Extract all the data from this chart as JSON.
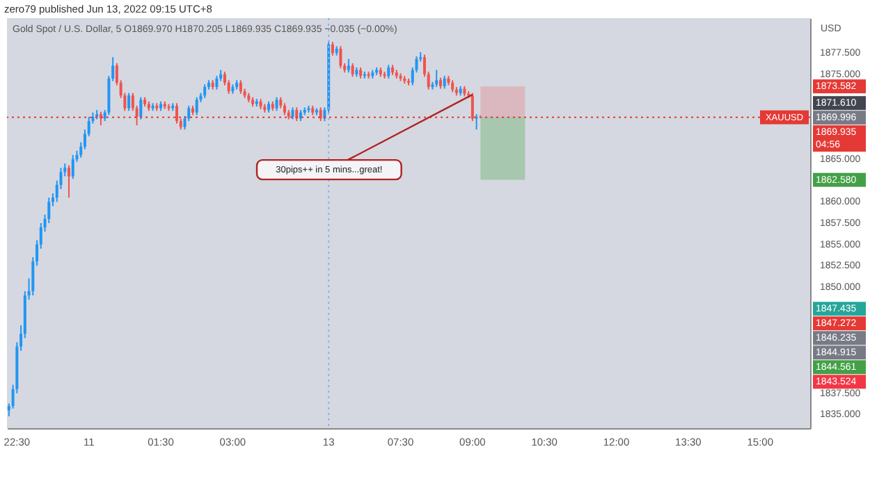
{
  "chart_data": {
    "type": "candlestick",
    "title": "zero79 published Jun 13, 2022 09:15 UTC+8",
    "subtitle": "Gold Spot / U.S. Dollar, 5  O1869.970 H1870.205 L1869.935 C1869.935 −0.035 (−0.00%)",
    "ylabel": "USD",
    "categories": [
      null,
      null,
      "22:30",
      null,
      null,
      null,
      null,
      null,
      null,
      null,
      null,
      null,
      null,
      null,
      null,
      null,
      null,
      null,
      null,
      null,
      "11",
      null,
      null,
      null,
      null,
      null,
      null,
      null,
      null,
      null,
      null,
      null,
      null,
      null,
      null,
      null,
      null,
      null,
      "01:30",
      null,
      null,
      null,
      null,
      null,
      null,
      null,
      null,
      null,
      null,
      null,
      null,
      null,
      null,
      null,
      null,
      null,
      "03:00",
      null,
      null,
      null,
      null,
      null,
      null,
      null,
      null,
      null,
      null,
      null,
      null,
      null,
      null,
      null,
      null,
      null,
      null,
      null,
      null,
      null,
      null,
      null,
      "13",
      null,
      null,
      null,
      null,
      null,
      null,
      null,
      null,
      null,
      null,
      null,
      null,
      null,
      null,
      null,
      null,
      null,
      "07:30",
      null,
      null,
      null,
      null,
      null,
      null,
      null,
      null,
      null,
      null,
      null,
      null,
      null,
      null,
      null,
      null,
      null,
      "09:00",
      null,
      null,
      null,
      null,
      null,
      null,
      null,
      null,
      null,
      null,
      null,
      null,
      null,
      null,
      null,
      null,
      null,
      "10:30",
      null,
      null,
      null,
      null,
      null,
      null,
      null,
      null,
      null,
      null,
      null,
      null,
      null,
      null,
      null,
      null,
      null,
      "12:00",
      null,
      null,
      null,
      null,
      null,
      null,
      null,
      null,
      null,
      null,
      null,
      null,
      null,
      null,
      null,
      null,
      null,
      "13:30",
      null,
      null,
      null,
      null,
      null,
      null,
      null,
      null,
      null,
      null,
      null,
      null,
      null,
      null,
      null,
      null,
      null,
      "15:00",
      null,
      null,
      null,
      null,
      null,
      null,
      null,
      null,
      null,
      null,
      null,
      null
    ],
    "ohlc": [
      [
        1835.5,
        1836.3,
        1834.8,
        1836
      ],
      [
        1836,
        1838.5,
        1835.7,
        1838
      ],
      [
        1838,
        1843.5,
        1837.5,
        1843
      ],
      [
        1843,
        1845.5,
        1842.5,
        1844.5
      ],
      [
        1844.5,
        1849.5,
        1844,
        1849
      ],
      [
        1849,
        1851,
        1848.5,
        1849.5
      ],
      [
        1849.5,
        1853.5,
        1849,
        1853
      ],
      [
        1853,
        1855.5,
        1852.5,
        1855
      ],
      [
        1855,
        1857.5,
        1854.5,
        1857
      ],
      [
        1857,
        1858.5,
        1856.5,
        1858
      ],
      [
        1858,
        1860.5,
        1857.5,
        1860
      ],
      [
        1860,
        1861,
        1859.5,
        1860.5
      ],
      [
        1860.5,
        1862.5,
        1860,
        1862
      ],
      [
        1862,
        1864,
        1861.5,
        1863.5
      ],
      [
        1863.5,
        1864.5,
        1863,
        1864
      ],
      [
        1864,
        1864.3,
        1860.5,
        1863
      ],
      [
        1863,
        1865.5,
        1862.7,
        1865
      ],
      [
        1865,
        1866,
        1864.7,
        1865.5
      ],
      [
        1865.5,
        1867,
        1865.2,
        1866.5
      ],
      [
        1866.5,
        1868.5,
        1866.2,
        1868
      ],
      [
        1868,
        1870,
        1867.7,
        1869.5
      ],
      [
        1869.5,
        1870.5,
        1869.2,
        1870
      ],
      [
        1870,
        1870.8,
        1869.7,
        1870.3
      ],
      [
        1870.3,
        1870.6,
        1869,
        1869.8
      ],
      [
        1869.8,
        1870.8,
        1869.5,
        1870.5
      ],
      [
        1870.5,
        1874.8,
        1870.2,
        1874.5
      ],
      [
        1874.5,
        1877,
        1874.2,
        1876
      ],
      [
        1876,
        1876.3,
        1873.7,
        1874
      ],
      [
        1874,
        1874.3,
        1872.2,
        1872.5
      ],
      [
        1872.5,
        1872.8,
        1870.7,
        1871
      ],
      [
        1871,
        1872.8,
        1870.7,
        1872.5
      ],
      [
        1872.5,
        1872.8,
        1870.7,
        1871
      ],
      [
        1871,
        1871.3,
        1869,
        1870
      ],
      [
        1870,
        1872.3,
        1869.7,
        1872
      ],
      [
        1872,
        1872.3,
        1871.2,
        1871.5
      ],
      [
        1871.5,
        1871.8,
        1870.7,
        1871
      ],
      [
        1871,
        1871.6,
        1870.7,
        1871.3
      ],
      [
        1871.3,
        1871.6,
        1870.7,
        1871
      ],
      [
        1871,
        1871.8,
        1870.7,
        1871.5
      ],
      [
        1871.5,
        1871.8,
        1870.9,
        1871.2
      ],
      [
        1871.2,
        1871.5,
        1870.7,
        1871
      ],
      [
        1871,
        1871.6,
        1870.7,
        1871.3
      ],
      [
        1871.3,
        1871.6,
        1869.2,
        1869.5
      ],
      [
        1869.5,
        1869.8,
        1868.5,
        1868.8
      ],
      [
        1868.8,
        1870.1,
        1868.5,
        1869.8
      ],
      [
        1869.8,
        1871.3,
        1869.5,
        1871
      ],
      [
        1871,
        1871.3,
        1870.2,
        1870.5
      ],
      [
        1870.5,
        1872.3,
        1870.2,
        1872
      ],
      [
        1872,
        1872.8,
        1871.7,
        1872.5
      ],
      [
        1872.5,
        1873.8,
        1872.2,
        1873.5
      ],
      [
        1873.5,
        1874.3,
        1873.2,
        1874
      ],
      [
        1874,
        1874.3,
        1873.2,
        1873.5
      ],
      [
        1873.5,
        1874.8,
        1873.2,
        1874.5
      ],
      [
        1874.5,
        1875.5,
        1874.2,
        1875
      ],
      [
        1875,
        1875.3,
        1873.7,
        1874
      ],
      [
        1874,
        1874.3,
        1872.7,
        1873
      ],
      [
        1873,
        1873.8,
        1872.7,
        1873.5
      ],
      [
        1873.5,
        1874.3,
        1873.2,
        1874
      ],
      [
        1874,
        1874.3,
        1872.7,
        1873
      ],
      [
        1873,
        1873.3,
        1872.2,
        1872.5
      ],
      [
        1872.5,
        1872.8,
        1871.7,
        1872
      ],
      [
        1872,
        1872.3,
        1871.2,
        1871.5
      ],
      [
        1871.5,
        1872.1,
        1871.2,
        1871.8
      ],
      [
        1871.8,
        1872.1,
        1870.9,
        1871.2
      ],
      [
        1871.2,
        1871.5,
        1870.5,
        1870.8
      ],
      [
        1870.8,
        1871.8,
        1870.5,
        1871.5
      ],
      [
        1871.5,
        1871.8,
        1870.7,
        1871
      ],
      [
        1871,
        1872.3,
        1870.7,
        1872
      ],
      [
        1872,
        1872.3,
        1871,
        1871.3
      ],
      [
        1871.3,
        1871.6,
        1870.2,
        1870.5
      ],
      [
        1870.5,
        1870.8,
        1869.7,
        1870
      ],
      [
        1870,
        1871.1,
        1869.7,
        1870.8
      ],
      [
        1870.8,
        1871.1,
        1869.5,
        1869.8
      ],
      [
        1869.8,
        1870.8,
        1869.5,
        1870.5
      ],
      [
        1870.5,
        1871.1,
        1870.2,
        1870.8
      ],
      [
        1870.8,
        1871.3,
        1870.5,
        1871
      ],
      [
        1871,
        1871.3,
        1870.2,
        1870.5
      ],
      [
        1870.5,
        1871,
        1870.2,
        1870.8
      ],
      [
        1870.8,
        1871.1,
        1869.5,
        1869.8
      ],
      [
        1869.8,
        1871.1,
        1869.5,
        1870.8
      ],
      [
        1870.8,
        1879,
        1870.5,
        1878.5
      ],
      [
        1878.5,
        1878.8,
        1877.2,
        1877.5
      ],
      [
        1877.5,
        1878.3,
        1877.2,
        1878
      ],
      [
        1878,
        1878.3,
        1875.7,
        1876
      ],
      [
        1876,
        1876.3,
        1875.2,
        1875.5
      ],
      [
        1875.5,
        1876.8,
        1875.2,
        1876
      ],
      [
        1876,
        1876.3,
        1874.7,
        1875
      ],
      [
        1875,
        1875.8,
        1874.7,
        1875.5
      ],
      [
        1875.5,
        1875.8,
        1874.5,
        1874.8
      ],
      [
        1874.8,
        1875.3,
        1874.5,
        1875
      ],
      [
        1875,
        1875.3,
        1874.5,
        1874.8
      ],
      [
        1874.8,
        1875.5,
        1874.5,
        1875.2
      ],
      [
        1875.2,
        1875.8,
        1874.9,
        1875.5
      ],
      [
        1875.5,
        1875.8,
        1874.7,
        1875
      ],
      [
        1875,
        1875.3,
        1874.5,
        1874.8
      ],
      [
        1874.8,
        1876.1,
        1874.5,
        1875.8
      ],
      [
        1875.8,
        1876.1,
        1874.9,
        1875.2
      ],
      [
        1875.2,
        1875.5,
        1874.5,
        1874.8
      ],
      [
        1874.8,
        1875.1,
        1874.2,
        1874.5
      ],
      [
        1874.5,
        1874.8,
        1873.9,
        1874.2
      ],
      [
        1874.2,
        1874.5,
        1873.7,
        1874
      ],
      [
        1874,
        1875.8,
        1873.7,
        1875.5
      ],
      [
        1875.5,
        1877.1,
        1875.2,
        1876.8
      ],
      [
        1876.8,
        1877.6,
        1876.5,
        1877
      ],
      [
        1877,
        1877.3,
        1874.7,
        1875
      ],
      [
        1875,
        1875.3,
        1873.2,
        1873.5
      ],
      [
        1873.5,
        1874.1,
        1873.2,
        1873.8
      ],
      [
        1873.8,
        1875.5,
        1873.5,
        1874.3
      ],
      [
        1874.3,
        1874.6,
        1873.3,
        1873.6
      ],
      [
        1873.6,
        1874.8,
        1873.3,
        1874.5
      ],
      [
        1874.5,
        1874.8,
        1873.7,
        1874
      ],
      [
        1874,
        1874.3,
        1872.9,
        1873.2
      ],
      [
        1873.2,
        1873.5,
        1872.5,
        1872.8
      ],
      [
        1872.8,
        1873.6,
        1872.5,
        1873.3
      ],
      [
        1873.3,
        1873.6,
        1872.4,
        1872.7
      ],
      [
        1872.7,
        1873,
        1872.2,
        1872.5
      ],
      [
        1872.5,
        1872.8,
        1869.5,
        1869.8
      ],
      [
        1869.8,
        1870.3,
        1868.5,
        1869.97
      ],
      [
        1869.97,
        1870.205,
        1869.935,
        1869.935
      ],
      null,
      null,
      null,
      null,
      null,
      null,
      null,
      null,
      null,
      null,
      null,
      null,
      null,
      null,
      null,
      null,
      null,
      null,
      null,
      null,
      null,
      null,
      null,
      null,
      null,
      null,
      null,
      null,
      null,
      null,
      null,
      null,
      null,
      null,
      null,
      null,
      null,
      null,
      null,
      null,
      null,
      null,
      null,
      null,
      null,
      null,
      null,
      null,
      null,
      null,
      null,
      null,
      null,
      null,
      null,
      null,
      null,
      null,
      null,
      null,
      null,
      null,
      null,
      null,
      null,
      null,
      null,
      null,
      null,
      null,
      null,
      null,
      null,
      null,
      null,
      null,
      null,
      null,
      null,
      null,
      null,
      null
    ],
    "colors": [
      "#2196f3",
      "#2196f3",
      "#2196f3",
      "#2196f3",
      "#2196f3",
      "#2196f3",
      "#2196f3",
      "#2196f3",
      "#2196f3",
      "#2196f3",
      "#2196f3",
      "#2196f3",
      "#2196f3",
      "#2196f3",
      "#2196f3",
      "#ef5350",
      "#2196f3",
      "#2196f3",
      "#2196f3",
      "#2196f3",
      "#2196f3",
      "#2196f3",
      "#2196f3",
      "#ef5350",
      "#2196f3",
      "#2196f3",
      "#2196f3",
      "#ef5350",
      "#ef5350",
      "#ef5350",
      "#2196f3",
      "#ef5350",
      "#ef5350",
      "#2196f3",
      "#ef5350",
      "#ef5350",
      "#2196f3",
      "#ef5350",
      "#2196f3",
      "#ef5350",
      "#ef5350",
      "#2196f3",
      "#ef5350",
      "#ef5350",
      "#2196f3",
      "#2196f3",
      "#ef5350",
      "#2196f3",
      "#2196f3",
      "#2196f3",
      "#2196f3",
      "#ef5350",
      "#2196f3",
      "#2196f3",
      "#ef5350",
      "#ef5350",
      "#2196f3",
      "#2196f3",
      "#ef5350",
      "#ef5350",
      "#ef5350",
      "#ef5350",
      "#2196f3",
      "#ef5350",
      "#ef5350",
      "#2196f3",
      "#ef5350",
      "#2196f3",
      "#ef5350",
      "#ef5350",
      "#ef5350",
      "#2196f3",
      "#ef5350",
      "#2196f3",
      "#2196f3",
      "#2196f3",
      "#ef5350",
      "#2196f3",
      "#ef5350",
      "#2196f3",
      "#2196f3",
      "#ef5350",
      "#2196f3",
      "#ef5350",
      "#ef5350",
      "#2196f3",
      "#ef5350",
      "#2196f3",
      "#ef5350",
      "#2196f3",
      "#ef5350",
      "#2196f3",
      "#2196f3",
      "#ef5350",
      "#ef5350",
      "#2196f3",
      "#ef5350",
      "#ef5350",
      "#ef5350",
      "#ef5350",
      "#ef5350",
      "#2196f3",
      "#2196f3",
      "#2196f3",
      "#ef5350",
      "#ef5350",
      "#2196f3",
      "#2196f3",
      "#ef5350",
      "#2196f3",
      "#ef5350",
      "#ef5350",
      "#ef5350",
      "#2196f3",
      "#ef5350",
      "#ef5350",
      "#ef5350",
      "#2196f3",
      "#ef5350",
      null,
      null,
      null,
      null,
      null,
      null,
      null,
      null,
      null,
      null,
      null,
      null,
      null,
      null,
      null,
      null,
      null,
      null,
      null,
      null,
      null,
      null,
      null,
      null,
      null,
      null,
      null,
      null,
      null,
      null,
      null,
      null,
      null,
      null,
      null,
      null,
      null,
      null,
      null,
      null,
      null,
      null,
      null,
      null,
      null,
      null,
      null,
      null,
      null,
      null,
      null,
      null,
      null,
      null,
      null,
      null,
      null,
      null,
      null,
      null,
      null,
      null,
      null,
      null,
      null,
      null,
      null,
      null,
      null,
      null,
      null,
      null,
      null,
      null,
      null,
      null,
      null,
      null,
      null,
      null,
      null,
      null
    ],
    "ylim": [
      1833.4,
      1881.6
    ],
    "yticks": [
      {
        "value": 1835,
        "label": "1835.000"
      },
      {
        "value": 1837.5,
        "label": "1837.500"
      },
      {
        "value": 1850,
        "label": "1850.000"
      },
      {
        "value": 1852.5,
        "label": "1852.500"
      },
      {
        "value": 1855,
        "label": "1855.000"
      },
      {
        "value": 1857.5,
        "label": "1857.500"
      },
      {
        "value": 1860,
        "label": "1860.000"
      },
      {
        "value": 1865,
        "label": "1865.000"
      },
      {
        "value": 1875,
        "label": "1875.000"
      },
      {
        "value": 1877.5,
        "label": "1877.500"
      }
    ],
    "grid": false,
    "ref_lines": [
      {
        "axis": "x",
        "value": "13",
        "line_style": "dotted",
        "color": "#8fb0e8"
      },
      {
        "axis": "y",
        "value": 1869.935,
        "label": "XAUUSD",
        "line_style": "dotted",
        "color": "#e53935"
      }
    ],
    "bands": [
      {
        "axis": "y",
        "from": 1869.996,
        "to": 1873.582,
        "color": "#dcb3b9"
      },
      {
        "axis": "y",
        "from": 1862.58,
        "to": 1869.996,
        "color": "#9fc4a6"
      }
    ],
    "annotations": [
      {
        "text": "30pips++ in 5 mins...great!",
        "x": "09:00",
        "y": 1872.6
      },
      "04:56",
      "1873.582",
      "1871.610",
      "1869.996",
      "1869.935",
      "1862.580",
      "1847.435",
      "1847.272",
      "1846.235",
      "1844.915",
      "1844.561",
      "1843.524"
    ]
  }
}
